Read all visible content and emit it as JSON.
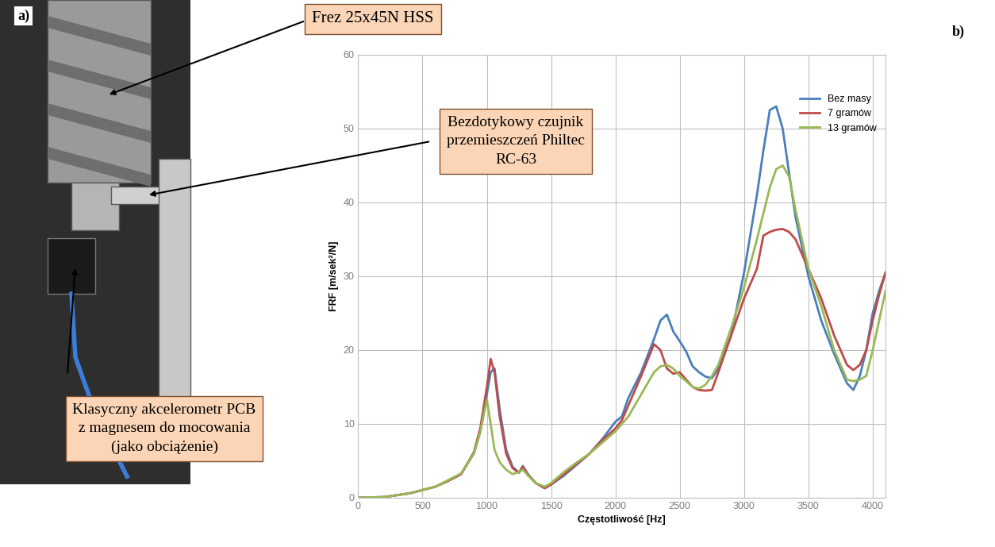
{
  "figure": {
    "panel_labels": [
      "a)",
      "b)"
    ],
    "photo_callouts": [
      "Frez 25x45N HSS",
      "Bezdotykowy czujnik\nprzemieszczeń Philtec\nRC-63",
      "Klasyczny akcelerometr PCB\nz magnesem do mocowania\n(jako obciążenie)"
    ]
  },
  "chart_data": {
    "type": "line",
    "x_label": "Częstotliwość [Hz]",
    "y_label": "FRF [m/sek²/N]",
    "x": [
      0,
      200,
      400,
      600,
      700,
      800,
      900,
      950,
      1000,
      1030,
      1060,
      1100,
      1150,
      1200,
      1250,
      1280,
      1320,
      1380,
      1450,
      1500,
      1600,
      1700,
      1800,
      1900,
      2000,
      2050,
      2100,
      2200,
      2300,
      2350,
      2400,
      2450,
      2500,
      2550,
      2600,
      2650,
      2700,
      2750,
      2800,
      2900,
      3000,
      3100,
      3150,
      3200,
      3250,
      3300,
      3350,
      3400,
      3500,
      3600,
      3700,
      3800,
      3850,
      3900,
      3950,
      4000,
      4050,
      4100
    ],
    "series": [
      {
        "name": "Bez masy",
        "color": "#4a7ebb",
        "line_style": "solid",
        "values": [
          0,
          0.1,
          0.6,
          1.5,
          2.3,
          3.2,
          6,
          9,
          14,
          17,
          17.5,
          12,
          6.5,
          4.2,
          3.4,
          4.3,
          3.2,
          2,
          1.3,
          1.8,
          3,
          4.5,
          6,
          8,
          10.3,
          11,
          13.5,
          17,
          21.5,
          24,
          24.8,
          22.5,
          21.2,
          19.8,
          17.8,
          17,
          16.4,
          16.2,
          17.5,
          22,
          30.5,
          41,
          47,
          52.5,
          53,
          50,
          44,
          38,
          30,
          24,
          19.5,
          15.5,
          14.6,
          16.5,
          20,
          25,
          28,
          30.5
        ]
      },
      {
        "name": "7 gramów",
        "color": "#be4b48",
        "line_style": "solid",
        "values": [
          0,
          0.1,
          0.6,
          1.5,
          2.3,
          3.2,
          6.2,
          9.5,
          15,
          18.8,
          17,
          11,
          6,
          4,
          3.4,
          4.2,
          3.1,
          2,
          1.3,
          1.8,
          3.2,
          4.6,
          6,
          7.8,
          9.4,
          10.5,
          12.5,
          16.5,
          20.8,
          20,
          17.5,
          16.8,
          17,
          16,
          15,
          14.6,
          14.5,
          14.6,
          17,
          22,
          27,
          31,
          35.5,
          36,
          36.3,
          36.4,
          36,
          35,
          31,
          27,
          22,
          18,
          17.3,
          18,
          20,
          24,
          27.5,
          30.5
        ]
      },
      {
        "name": "13 gramów",
        "color": "#98b954",
        "line_style": "solid",
        "values": [
          0,
          0.1,
          0.6,
          1.5,
          2.4,
          3.3,
          6,
          9,
          13.3,
          10,
          6.5,
          4.8,
          3.8,
          3.2,
          3.5,
          3.8,
          3,
          2,
          1.5,
          2,
          3.5,
          4.8,
          6,
          7.5,
          9,
          10,
          11,
          14,
          17,
          17.8,
          18,
          17.5,
          16.5,
          15.8,
          15,
          14.8,
          15.3,
          16.5,
          18,
          23,
          28.5,
          35,
          38.5,
          42,
          44.5,
          45,
          43.5,
          39,
          31,
          26,
          20,
          16,
          15.8,
          16,
          16.5,
          20,
          24,
          28
        ]
      }
    ],
    "xlim": [
      0,
      4100
    ],
    "xticks": [
      0,
      500,
      1000,
      1500,
      2000,
      2500,
      3000,
      3500,
      4000
    ],
    "ylim": [
      0,
      60
    ],
    "yticks": [
      0,
      10,
      20,
      30,
      40,
      50,
      60
    ],
    "grid": true,
    "legend": "upper right"
  }
}
